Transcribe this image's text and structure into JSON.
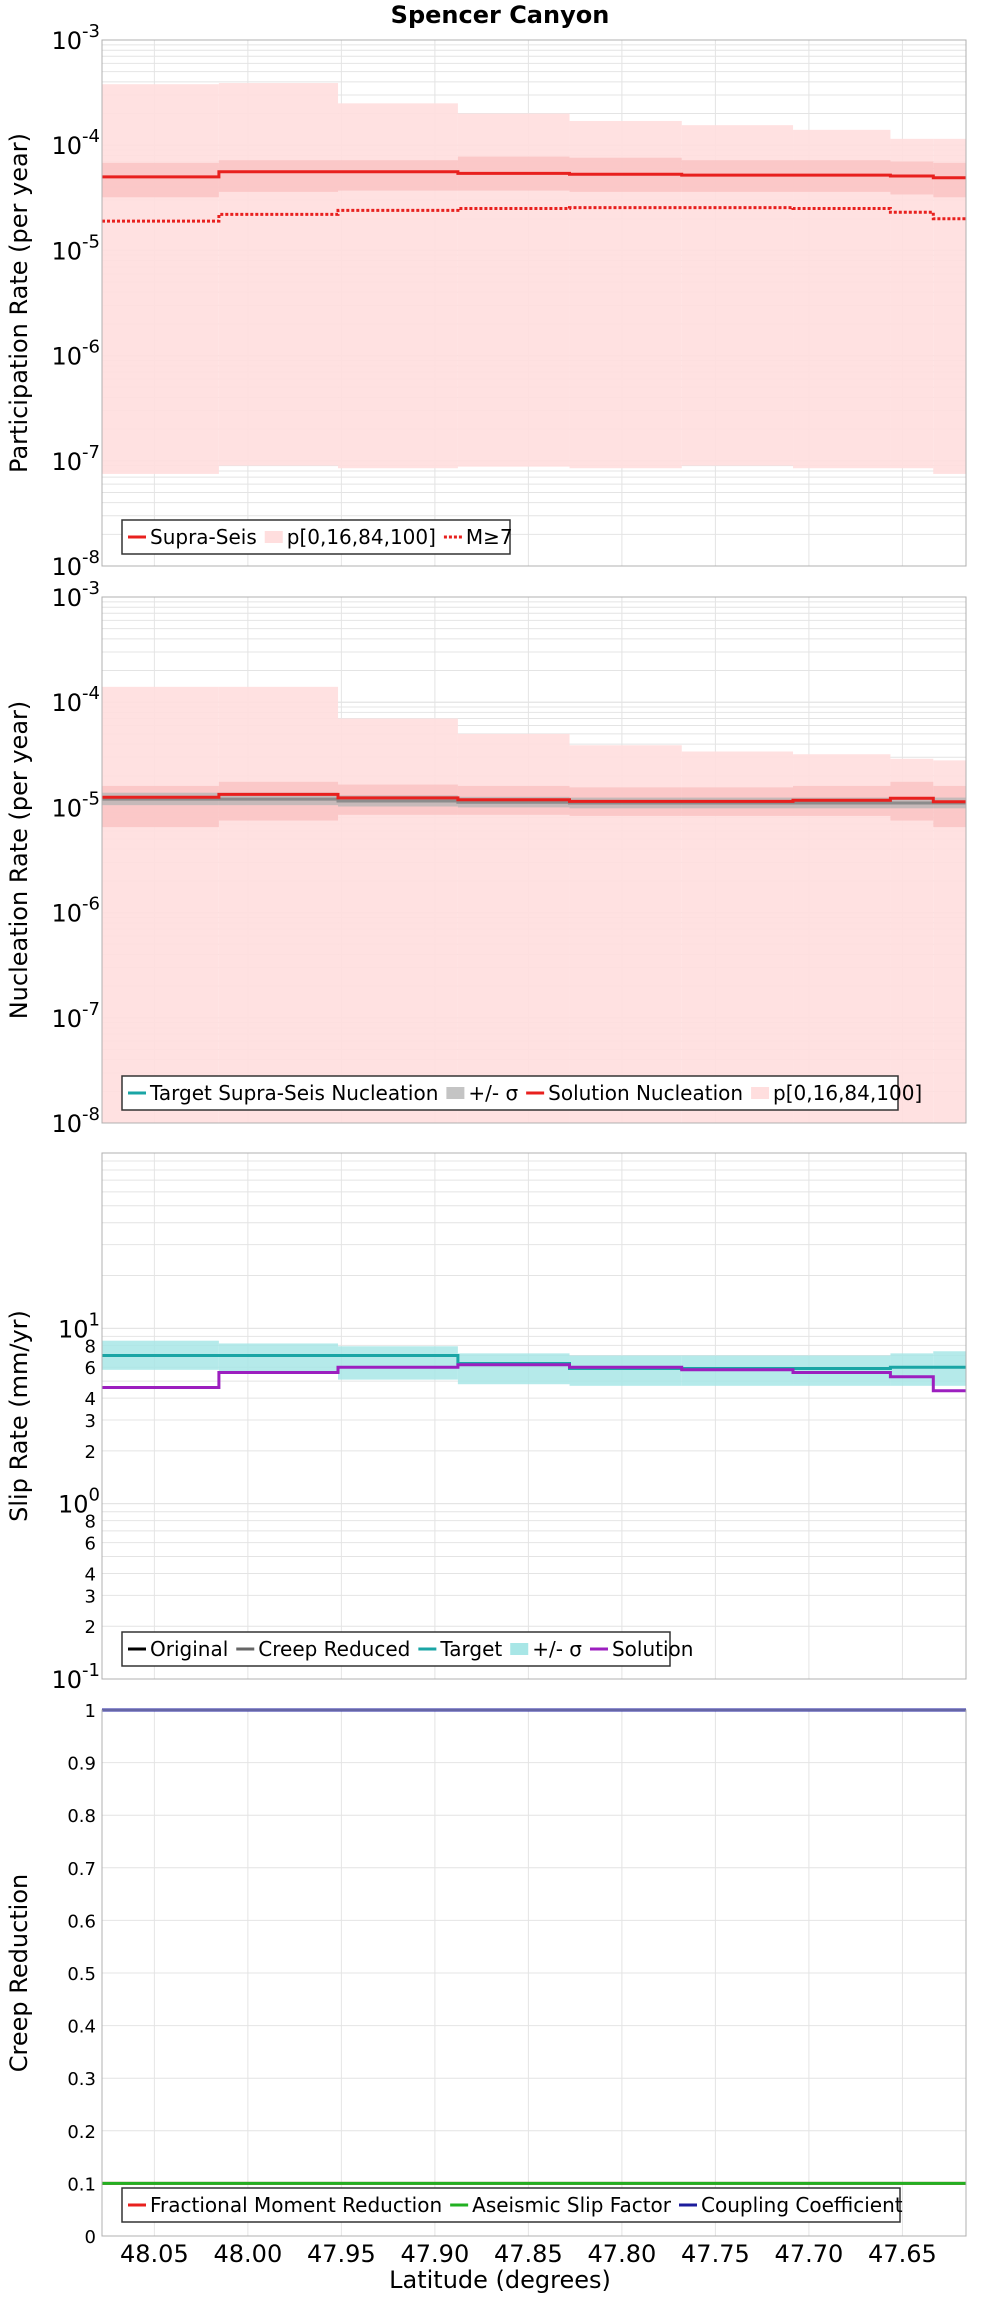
{
  "title": "Spencer Canyon",
  "x_axis": {
    "label": "Latitude (degrees)",
    "range": [
      48.078,
      47.616
    ],
    "ticks": [
      48.05,
      48.0,
      47.95,
      47.9,
      47.85,
      47.8,
      47.75,
      47.7,
      47.65
    ],
    "tick_labels": [
      "48.05",
      "48.00",
      "47.95",
      "47.90",
      "47.85",
      "47.80",
      "47.75",
      "47.70",
      "47.65"
    ]
  },
  "bins": [
    48.078,
    48.0155,
    47.9518,
    47.8877,
    47.828,
    47.768,
    47.7085,
    47.6564,
    47.6335,
    47.616
  ],
  "colors": {
    "red": "#e8201e",
    "pink_band": "#ffdede",
    "mid_band": "#f7b5b5",
    "gray_band": "#b4b4b4",
    "teal": "#1aa5a5",
    "teal_band": "#a8e6e6",
    "purple": "#9c1fbf",
    "green": "#22b022",
    "navy": "#1c1c9c",
    "grid": "#e4e4e4"
  },
  "chart_data": [
    {
      "type": "step",
      "name": "participation",
      "ylabel": "Participation Rate (per year)",
      "yscale": "log",
      "ylim": [
        1e-08,
        0.001
      ],
      "y_tick_mant": [
        "10",
        "10",
        "10",
        "10",
        "10",
        "10"
      ],
      "y_tick_exp": [
        "-8",
        "-7",
        "-6",
        "-5",
        "-4",
        "-3"
      ],
      "series": [
        {
          "name": "Supra-Seis",
          "values": [
            5e-05,
            5.6e-05,
            5.6e-05,
            5.4e-05,
            5.3e-05,
            5.2e-05,
            5.2e-05,
            5.1e-05,
            4.9e-05
          ]
        },
        {
          "name": "M≥7",
          "values": [
            1.9e-05,
            2.2e-05,
            2.4e-05,
            2.5e-05,
            2.55e-05,
            2.55e-05,
            2.5e-05,
            2.3e-05,
            2e-05
          ]
        }
      ],
      "bands": [
        {
          "name": "p[0,16,84,100]",
          "lower": [
            7.5e-08,
            9e-08,
            8.5e-08,
            8.8e-08,
            8.5e-08,
            9e-08,
            8.5e-08,
            8.5e-08,
            7.5e-08
          ],
          "upper": [
            0.00038,
            0.00039,
            0.00025,
            0.0002,
            0.00017,
            0.000155,
            0.00014,
            0.000115,
            0.000115
          ]
        },
        {
          "name": "p16-84",
          "lower": [
            3.2e-05,
            3.6e-05,
            3.7e-05,
            3.7e-05,
            3.6e-05,
            3.6e-05,
            3.6e-05,
            3.4e-05,
            3.2e-05
          ],
          "upper": [
            6.8e-05,
            7.2e-05,
            7.2e-05,
            7.8e-05,
            7.6e-05,
            7.2e-05,
            7.2e-05,
            7e-05,
            6.8e-05
          ]
        }
      ],
      "legend": [
        "Supra-Seis",
        "p[0,16,84,100]",
        "M≥7"
      ]
    },
    {
      "type": "step",
      "name": "nucleation",
      "ylabel": "Nucleation Rate (per year)",
      "yscale": "log",
      "ylim": [
        1e-08,
        0.001
      ],
      "y_tick_mant": [
        "10",
        "10",
        "10",
        "10",
        "10",
        "10"
      ],
      "y_tick_exp": [
        "-8",
        "-7",
        "-6",
        "-5",
        "-4",
        "-3"
      ],
      "series": [
        {
          "name": "Target Supra-Seis Nucleation",
          "values": [
            1.2e-05,
            1.2e-05,
            1.15e-05,
            1.12e-05,
            1.1e-05,
            1.1e-05,
            1.1e-05,
            1.1e-05,
            1.1e-05
          ]
        },
        {
          "name": "Solution Nucleation",
          "values": [
            1.25e-05,
            1.33e-05,
            1.23e-05,
            1.18e-05,
            1.14e-05,
            1.14e-05,
            1.17e-05,
            1.22e-05,
            1.13e-05
          ]
        }
      ],
      "bands": [
        {
          "name": "p[0,16,84,100]",
          "lower": [
            1e-08,
            1e-08,
            1e-08,
            1e-08,
            1e-08,
            1e-08,
            1e-08,
            1e-08,
            1e-08
          ],
          "upper": [
            0.00014,
            0.00014,
            7e-05,
            5e-05,
            3.9e-05,
            3.4e-05,
            3.2e-05,
            2.9e-05,
            2.8e-05
          ]
        },
        {
          "name": "p16-84",
          "lower": [
            6.5e-06,
            7.5e-06,
            8.5e-06,
            8.5e-06,
            8.3e-06,
            8.3e-06,
            8.3e-06,
            7.5e-06,
            6.5e-06
          ],
          "upper": [
            1.6e-05,
            1.75e-05,
            1.65e-05,
            1.6e-05,
            1.55e-05,
            1.55e-05,
            1.6e-05,
            1.75e-05,
            1.6e-05
          ]
        },
        {
          "name": "+/- σ",
          "lower": [
            1.05e-05,
            1.05e-05,
            1.02e-05,
            1e-05,
            9.8e-06,
            9.8e-06,
            9.8e-06,
            9.8e-06,
            9.8e-06
          ],
          "upper": [
            1.38e-05,
            1.38e-05,
            1.3e-05,
            1.26e-05,
            1.24e-05,
            1.24e-05,
            1.24e-05,
            1.24e-05,
            1.24e-05
          ]
        }
      ],
      "legend": [
        "Target Supra-Seis Nucleation",
        "+/- σ",
        "Solution Nucleation",
        "p[0,16,84,100]"
      ]
    },
    {
      "type": "step",
      "name": "slip",
      "ylabel": "Slip Rate (mm/yr)",
      "yscale": "log",
      "ylim": [
        0.1,
        100
      ],
      "y_major_mant": [
        "10",
        "10",
        "10"
      ],
      "y_major_exp": [
        "-1",
        "0",
        "1"
      ],
      "y_minor_ticks": [
        {
          "value": 0.2,
          "label": "2"
        },
        {
          "value": 0.3,
          "label": "3"
        },
        {
          "value": 0.4,
          "label": "4"
        },
        {
          "value": 0.6,
          "label": "6"
        },
        {
          "value": 0.8,
          "label": "8"
        },
        {
          "value": 2,
          "label": "2"
        },
        {
          "value": 3,
          "label": "3"
        },
        {
          "value": 4,
          "label": "4"
        },
        {
          "value": 6,
          "label": "6"
        },
        {
          "value": 8,
          "label": "8"
        }
      ],
      "series": [
        {
          "name": "Target",
          "values": [
            7.0,
            7.0,
            7.0,
            6.3,
            5.9,
            5.9,
            5.9,
            6.0,
            6.0
          ]
        },
        {
          "name": "Solution",
          "values": [
            4.6,
            5.6,
            6.0,
            6.2,
            6.0,
            5.8,
            5.6,
            5.3,
            4.4
          ]
        }
      ],
      "bands": [
        {
          "name": "+/- σ",
          "lower": [
            5.8,
            5.6,
            5.1,
            4.8,
            4.7,
            4.7,
            4.7,
            4.7,
            4.7
          ],
          "upper": [
            8.5,
            8.2,
            7.9,
            7.2,
            7.0,
            7.0,
            7.0,
            7.2,
            7.4
          ]
        }
      ],
      "legend": [
        "Original",
        "Creep Reduced",
        "Target",
        "+/- σ",
        "Solution"
      ]
    },
    {
      "type": "line",
      "name": "creep",
      "ylabel": "Creep Reduction",
      "yscale": "linear",
      "ylim": [
        0,
        1
      ],
      "y_ticks": [
        "0",
        "0.1",
        "0.2",
        "0.3",
        "0.4",
        "0.5",
        "0.6",
        "0.7",
        "0.8",
        "0.9",
        "1"
      ],
      "series": [
        {
          "name": "Fractional Moment Reduction",
          "value": 0.1
        },
        {
          "name": "Aseismic Slip Factor",
          "value": 0.1
        },
        {
          "name": "Coupling Coefficient",
          "value": 1.0
        }
      ],
      "legend": [
        "Fractional Moment Reduction",
        "Aseismic Slip Factor",
        "Coupling Coefficient"
      ]
    }
  ]
}
